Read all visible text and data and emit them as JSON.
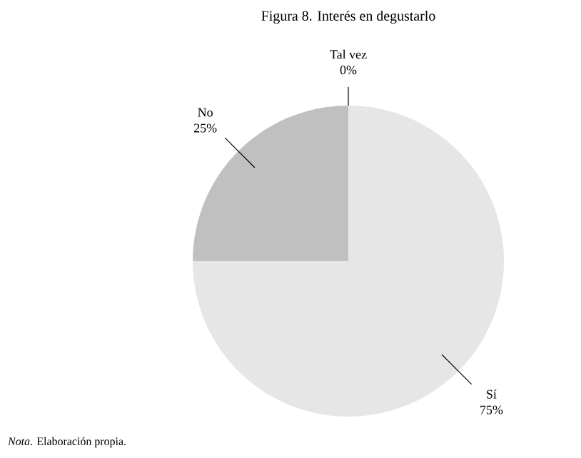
{
  "chart_data": {
    "type": "pie",
    "title": "Figura 8. Interés en degustarlo",
    "categories": [
      "Sí",
      "No",
      "Tal vez"
    ],
    "values": [
      75,
      25,
      0
    ],
    "colors": [
      "#e6e6e6",
      "#c0c0c0",
      "#a0a0a0"
    ],
    "value_labels": [
      "75%",
      "25%",
      "0%"
    ],
    "annotations": [
      "*Nota*. Elaboración propia."
    ]
  }
}
